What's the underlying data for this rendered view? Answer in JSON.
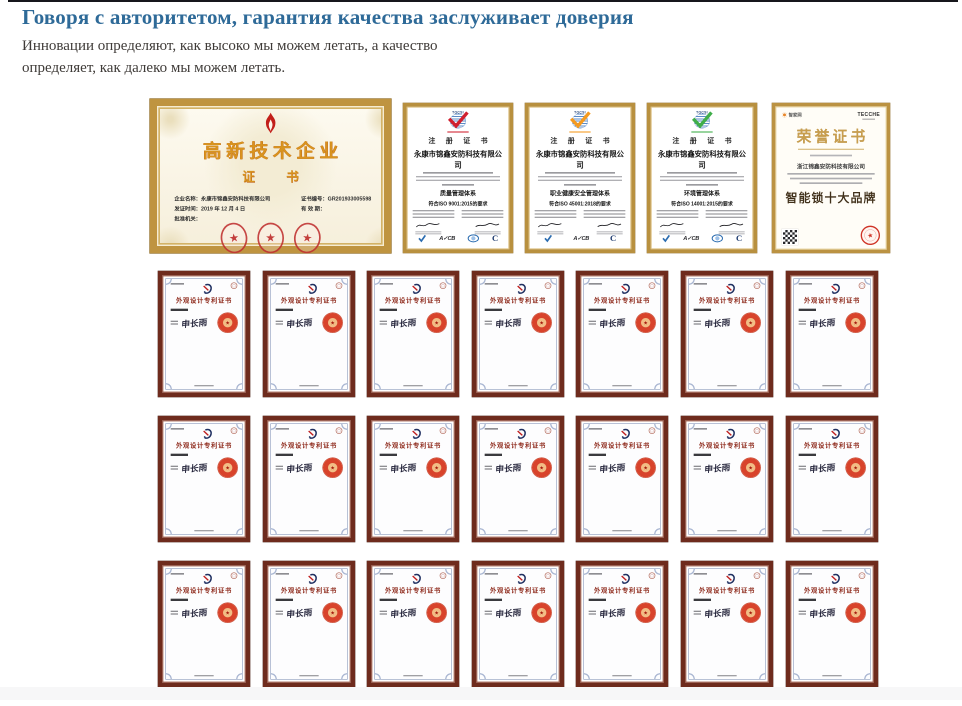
{
  "header": {
    "title": "Говоря с авторитетом, гарантия качества заслуживает доверия",
    "subtitle": [
      "Инновации определяют, как высоко мы можем летать, а качество",
      "определяет, как далеко мы можем летать."
    ]
  },
  "hitech_cert": {
    "title": "高新技术企业",
    "subtitle": "证 书",
    "fields_left": [
      "企业名称：永康市锦鑫安防科技有限公司",
      "发证时间：2019 年 12 月 4 日",
      "批准机关："
    ],
    "fields_right": [
      "证书编号：GR201933005598",
      "有 效 期："
    ],
    "seal_star": "★"
  },
  "iso_certs": [
    {
      "logo": "TQCSI",
      "check_color": "#d01f2e",
      "title": "注 册 证 书",
      "company": "永康市锦鑫安防科技有限公司",
      "system": "质量管理体系",
      "standard": "符合ISO 9001:2015的要求",
      "footer_logos": [
        {
          "kind": "check-badge"
        },
        {
          "kind": "acb",
          "label": "A✓CB"
        },
        {
          "kind": "iaf"
        },
        {
          "kind": "c-mark",
          "label": "C"
        }
      ]
    },
    {
      "logo": "TQCSI",
      "check_color": "#f59a1e",
      "title": "注 册 证 书",
      "company": "永康市锦鑫安防科技有限公司",
      "system": "职业健康安全管理体系",
      "standard": "符合ISO 45001:2018的要求",
      "footer_logos": [
        {
          "kind": "check-badge"
        },
        {
          "kind": "acb",
          "label": "A✓CB"
        },
        {
          "kind": "c-mark",
          "label": "C"
        }
      ]
    },
    {
      "logo": "TQCSI",
      "check_color": "#3fae49",
      "title": "注 册 证 书",
      "company": "永康市锦鑫安防科技有限公司",
      "system": "环境管理体系",
      "standard": "符合ISO 14001:2015的要求",
      "footer_logos": [
        {
          "kind": "check-badge"
        },
        {
          "kind": "acb",
          "label": "A✓CB"
        },
        {
          "kind": "iaf"
        },
        {
          "kind": "c-mark",
          "label": "C"
        }
      ]
    }
  ],
  "honor_cert": {
    "logo_left": "智家网",
    "logo_right": "TECCHE",
    "title": "荣誉证书",
    "company": "浙江锦鑫安防科技有限公司",
    "award": "智能锁十大品牌",
    "seal_star": "★"
  },
  "patent": {
    "title": "外观设计专利证书",
    "signature": "申长雨",
    "seal_star": "★",
    "rows": 3,
    "cols": 7
  },
  "colors": {
    "heading_blue": "#2e6a98",
    "gold_frame": "#bf9440",
    "maroon_frame": "#6e2b1d",
    "patent_title_red": "#8f2b1d",
    "seal_red": "#cf3326",
    "iso_check_quality": "#d01f2e",
    "iso_check_ohs": "#f59a1e",
    "iso_check_env": "#3fae49",
    "honor_gold": "#c89e4e",
    "hitech_gold_text": "#d8941e"
  }
}
